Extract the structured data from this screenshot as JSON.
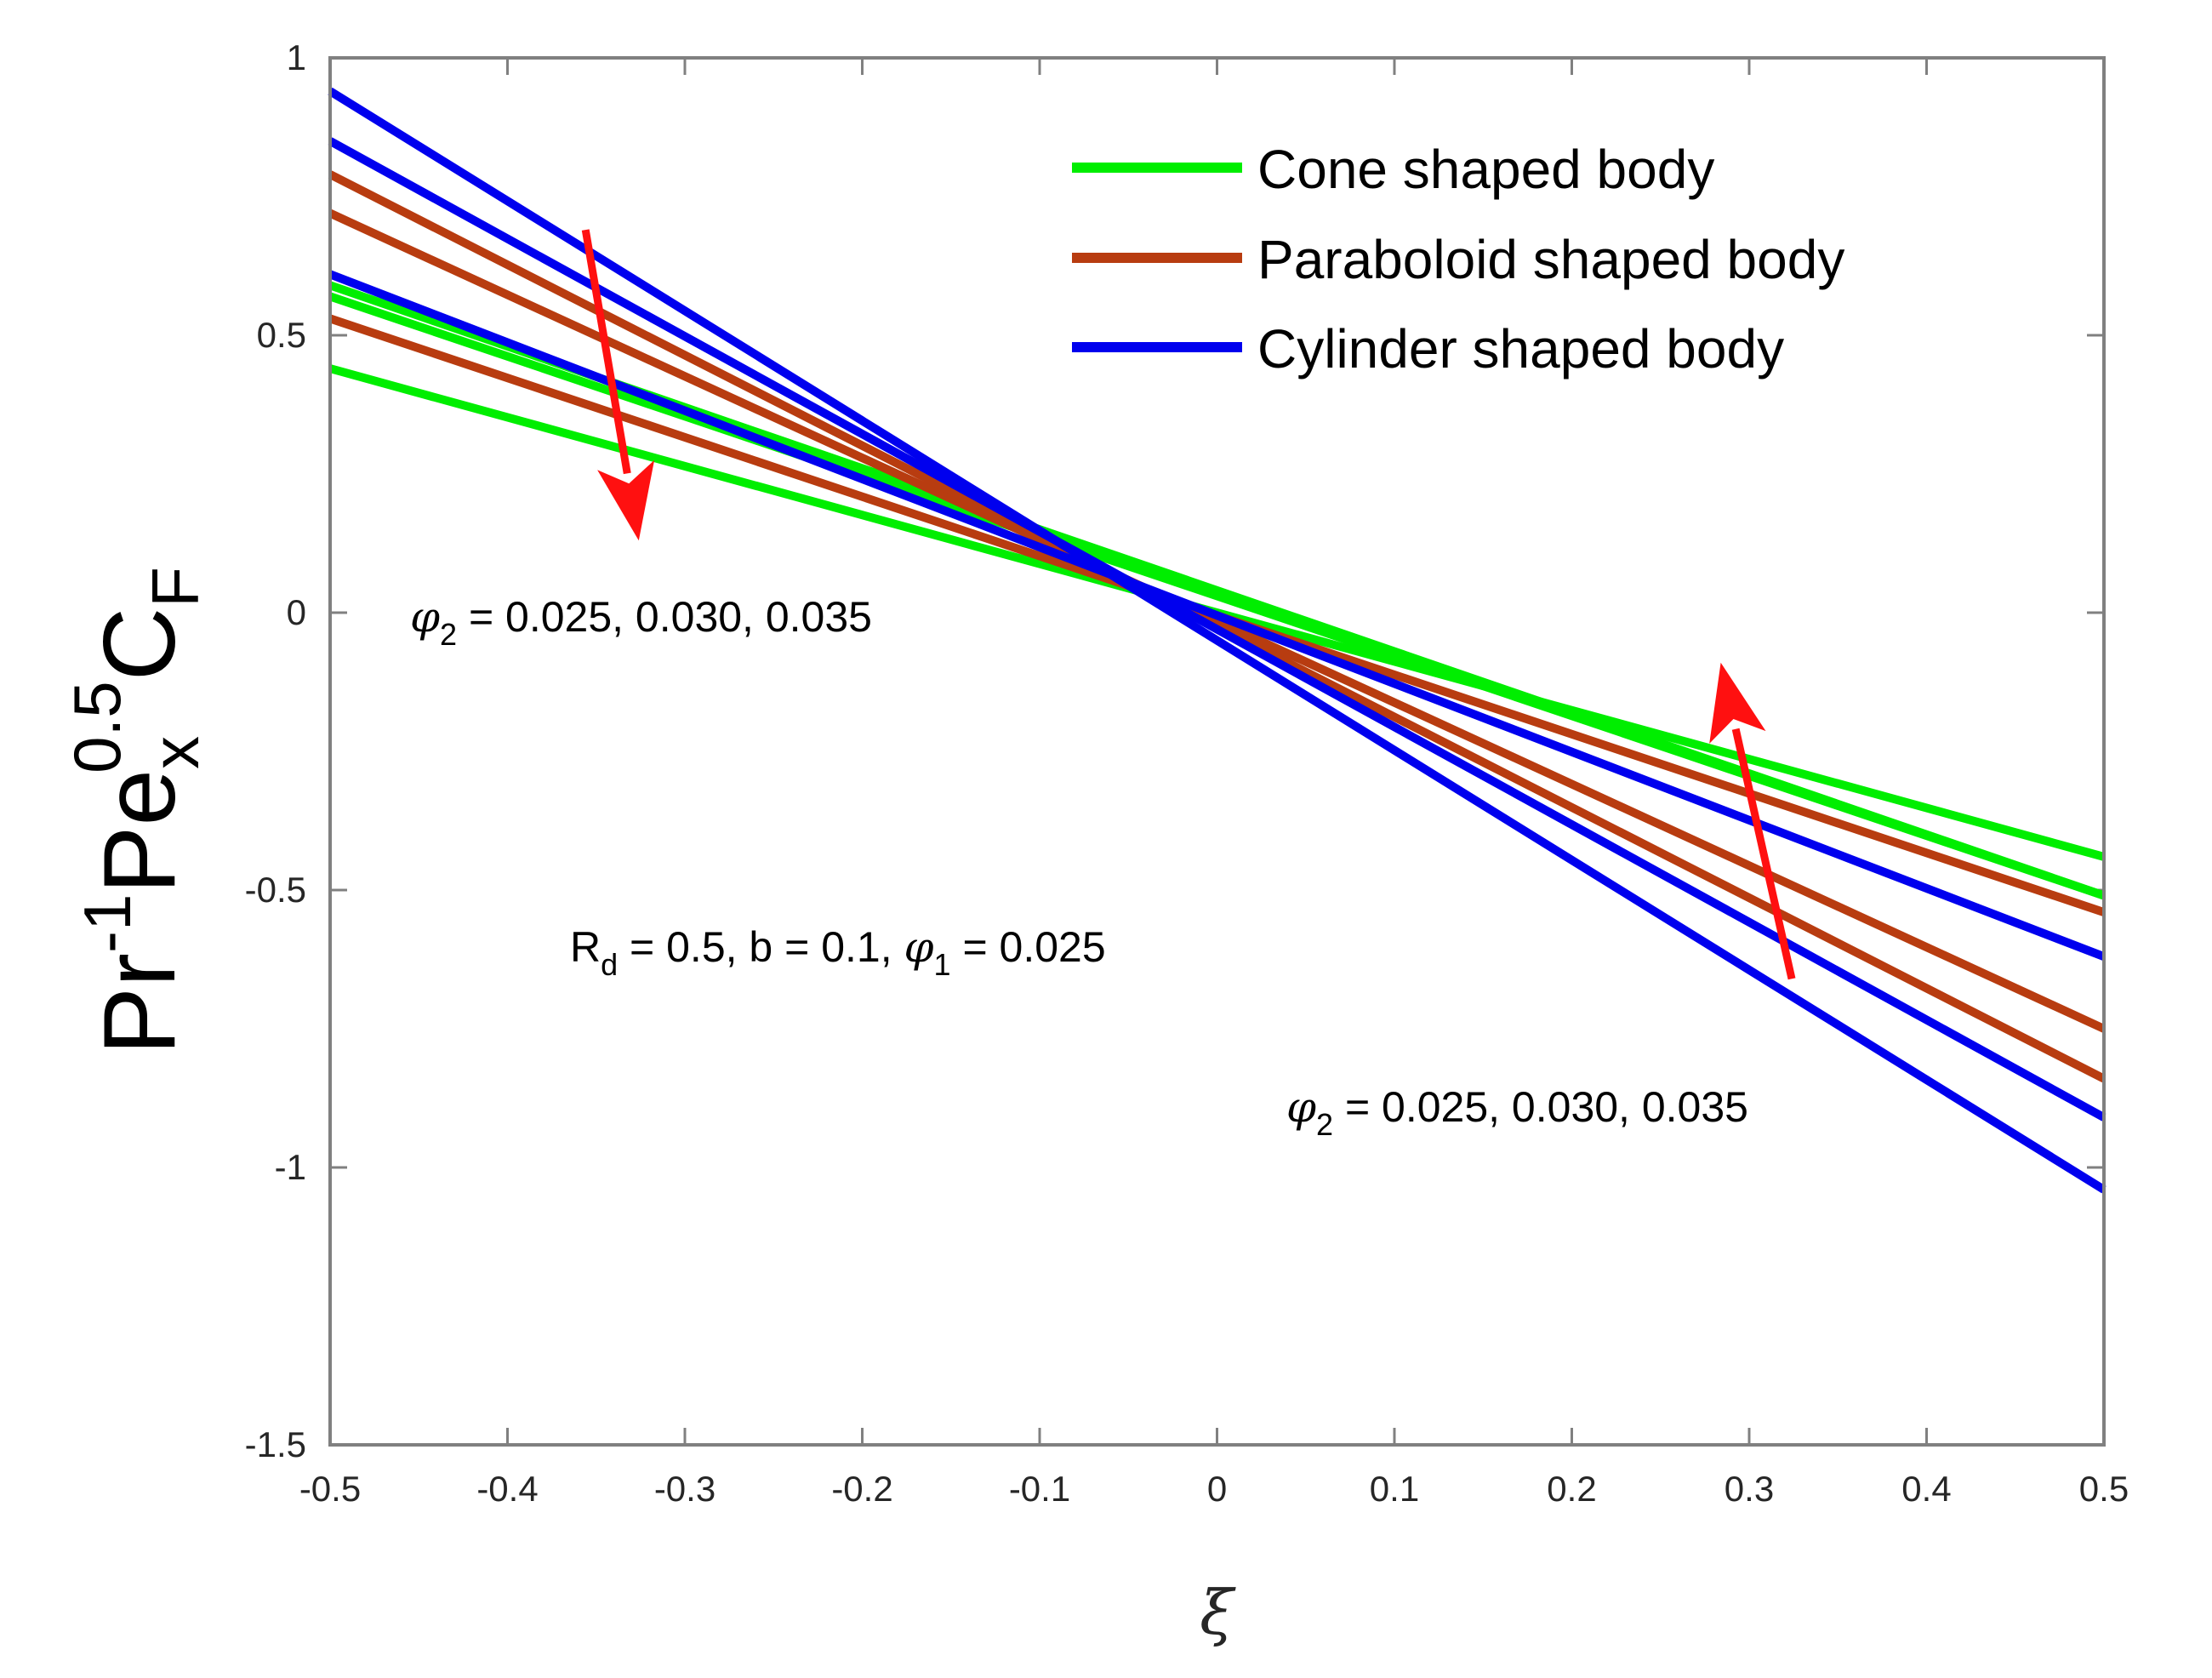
{
  "chart_data": {
    "type": "line",
    "xlabel": "ξ",
    "ylabel": {
      "base1": "Pr",
      "sup1": "-1",
      "base2": "Pe",
      "sub2": "x",
      "sup2": "0.5",
      "base3": "C",
      "sub3": "F"
    },
    "xlim": [
      -0.5,
      0.5
    ],
    "ylim": [
      -1.5,
      1
    ],
    "x_ticks": [
      -0.5,
      -0.4,
      -0.3,
      -0.2,
      -0.1,
      0,
      0.1,
      0.2,
      0.3,
      0.4,
      0.5
    ],
    "x_tick_labels": [
      "-0.5",
      "-0.4",
      "-0.3",
      "-0.2",
      "-0.1",
      "0",
      "0.1",
      "0.2",
      "0.3",
      "0.4",
      "0.5"
    ],
    "y_ticks": [
      -1.5,
      -1,
      -0.5,
      0,
      0.5,
      1
    ],
    "y_tick_labels": [
      "-1.5",
      "-1",
      "-0.5",
      "0",
      "0.5",
      "1"
    ],
    "grid": false,
    "legend_position": "top-right",
    "legend": [
      {
        "label": "Cone shaped body",
        "color": "#00ee00"
      },
      {
        "label": "Paraboloid shaped body",
        "color": "#b83c10"
      },
      {
        "label": "Cylinder shaped body",
        "color": "#0000ee"
      }
    ],
    "series": [
      {
        "name": "Cone shaped body, φ2 = 0.025",
        "color": "#00ee00",
        "x": [
          -0.5,
          0.5
        ],
        "y": [
          0.44,
          -0.44
        ]
      },
      {
        "name": "Cone shaped body, φ2 = 0.030",
        "color": "#00ee00",
        "x": [
          -0.5,
          0.5
        ],
        "y": [
          0.57,
          -0.51
        ]
      },
      {
        "name": "Cone shaped body, φ2 = 0.035",
        "color": "#00ee00",
        "x": [
          -0.5,
          0.5
        ],
        "y": [
          0.59,
          -0.51
        ]
      },
      {
        "name": "Paraboloid shaped body, φ2 = 0.025",
        "color": "#b83c10",
        "x": [
          -0.5,
          0.5
        ],
        "y": [
          0.53,
          -0.54
        ]
      },
      {
        "name": "Paraboloid shaped body, φ2 = 0.030",
        "color": "#b83c10",
        "x": [
          -0.5,
          0.5
        ],
        "y": [
          0.72,
          -0.75
        ]
      },
      {
        "name": "Paraboloid shaped body, φ2 = 0.035",
        "color": "#b83c10",
        "x": [
          -0.5,
          0.5
        ],
        "y": [
          0.79,
          -0.84
        ]
      },
      {
        "name": "Cylinder shaped body, φ2 = 0.025",
        "color": "#0000ee",
        "x": [
          -0.5,
          0.5
        ],
        "y": [
          0.61,
          -0.62
        ]
      },
      {
        "name": "Cylinder shaped body, φ2 = 0.030",
        "color": "#0000ee",
        "x": [
          -0.5,
          0.5
        ],
        "y": [
          0.85,
          -0.91
        ]
      },
      {
        "name": "Cylinder shaped body, φ2 = 0.035",
        "color": "#0000ee",
        "x": [
          -0.5,
          0.5
        ],
        "y": [
          0.94,
          -1.04
        ]
      }
    ],
    "arrows": [
      {
        "name": "arrow-left",
        "color": "#ff1010",
        "from": [
          -0.356,
          0.69
        ],
        "to": [
          -0.326,
          0.13
        ]
      },
      {
        "name": "arrow-right",
        "color": "#ff1010",
        "from": [
          0.324,
          -0.66
        ],
        "to": [
          0.284,
          -0.09
        ]
      }
    ],
    "annotations": {
      "phi_left": {
        "symbol": "φ",
        "sub": "2",
        "text": " = 0.025, 0.030, 0.035"
      },
      "phi_right": {
        "symbol": "φ",
        "sub": "2",
        "text": " = 0.025, 0.030, 0.035"
      },
      "params": {
        "r": "R",
        "r_sub": "d",
        "mid": " = 0.5, b = 0.1, ",
        "symbol": "φ",
        "sym_sub": "1",
        "end": " = 0.025"
      }
    }
  }
}
